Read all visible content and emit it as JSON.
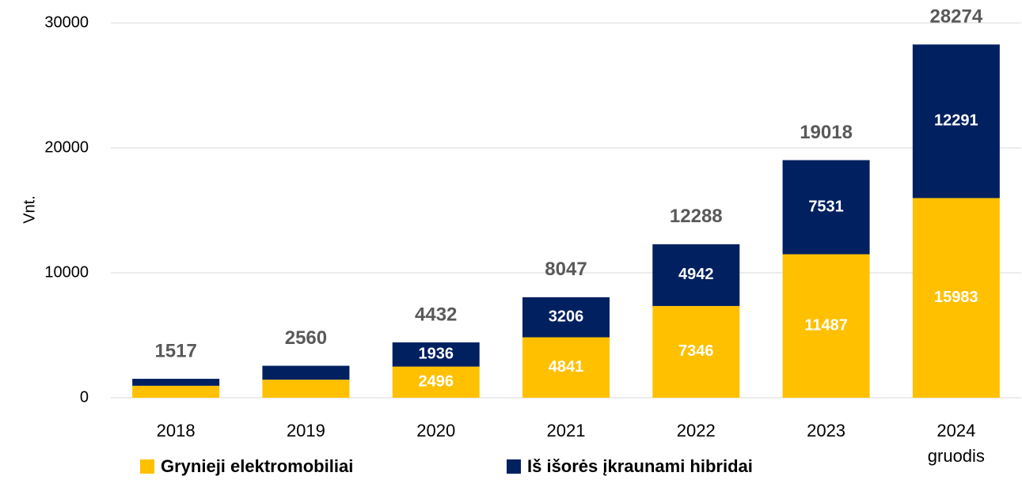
{
  "chart_data": {
    "type": "stacked_bar",
    "y_label": "Vnt.",
    "categories": [
      "2018",
      "2019",
      "2020",
      "2021",
      "2022",
      "2023",
      "2024 gruodis"
    ],
    "series": [
      {
        "name": "Grynieji elektromobiliai",
        "color": "#FFC000",
        "values": [
          960,
          1450,
          2496,
          4841,
          7346,
          11487,
          15983
        ],
        "value_labels": [
          null,
          null,
          "2496",
          "4841",
          "7346",
          "11487",
          "15983"
        ]
      },
      {
        "name": "Iš išorės įkraunami hibridai",
        "color": "#002060",
        "values": [
          557,
          1110,
          1936,
          3206,
          4942,
          7531,
          12291
        ],
        "value_labels": [
          null,
          null,
          "1936",
          "3206",
          "4942",
          "7531",
          "12291"
        ]
      }
    ],
    "totals": [
      1517,
      2560,
      4432,
      8047,
      12288,
      19018,
      28274
    ],
    "ylim": [
      0,
      30000
    ],
    "yticks": [
      0,
      10000,
      20000,
      30000
    ],
    "grid": true,
    "legend": "bottom"
  }
}
